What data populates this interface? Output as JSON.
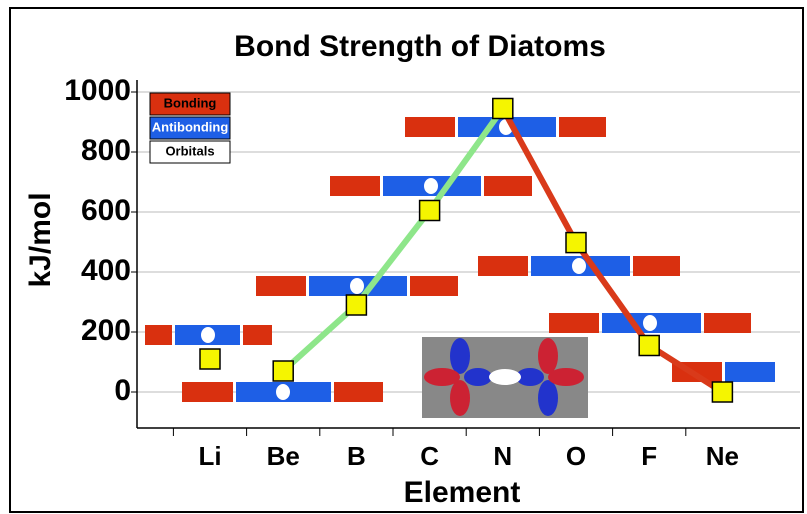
{
  "chart_data": {
    "type": "line",
    "title": "Bond Strength of Diatoms",
    "y_label": "kJ/mol",
    "x_label": "Element",
    "categories": [
      "Li",
      "Be",
      "B",
      "C",
      "N",
      "O",
      "F",
      "Ne"
    ],
    "values": [
      110,
      70,
      290,
      605,
      945,
      498,
      155,
      0
    ],
    "marker_color": "#f5f500",
    "line_segments": [
      {
        "color": "#8ee68a",
        "start": "Be",
        "end": "N"
      },
      {
        "color": "#d93a1a",
        "start": "N",
        "end": "Ne"
      }
    ],
    "ylim": [
      -120,
      1040
    ],
    "yticks": [
      0,
      200,
      400,
      600,
      800,
      1000
    ],
    "grid": true,
    "legend": [
      {
        "name": "Bonding",
        "color": "#d9300f"
      },
      {
        "name": "Antibonding",
        "color": "#1e5fe6"
      },
      {
        "name": "Orbitals",
        "color": "#ffffff"
      }
    ]
  }
}
